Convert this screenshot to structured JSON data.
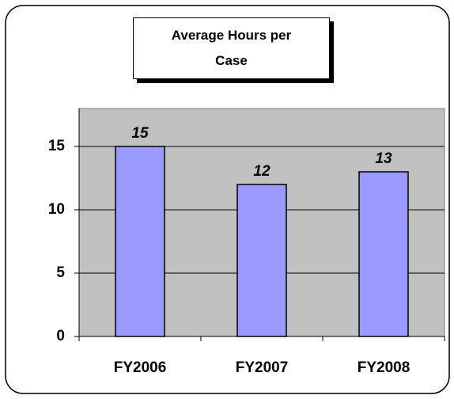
{
  "chart_data": {
    "type": "bar",
    "title": "Average Hours per Case",
    "categories": [
      "FY2006",
      "FY2007",
      "FY2008"
    ],
    "values": [
      15,
      12,
      13
    ],
    "color": "#9999ff",
    "ylim": [
      0,
      18
    ],
    "yticks": [
      0,
      5,
      10,
      15
    ],
    "grid": true
  }
}
